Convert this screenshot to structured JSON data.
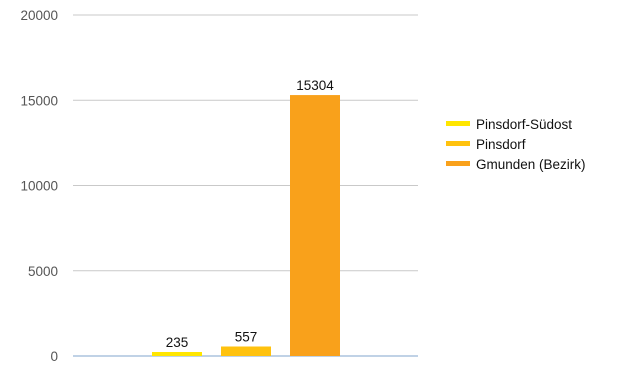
{
  "chart_data": {
    "type": "bar",
    "title": "",
    "xlabel": "",
    "ylabel": "",
    "ylim": [
      0,
      20000
    ],
    "yticks": [
      0,
      5000,
      10000,
      15000,
      20000
    ],
    "grid": true,
    "legend_position": "right",
    "series": [
      {
        "name": "Pinsdorf-Südost",
        "value": 235,
        "color": "#ffe600"
      },
      {
        "name": "Pinsdorf",
        "value": 557,
        "color": "#ffc20e"
      },
      {
        "name": "Gmunden (Bezirk)",
        "value": 15304,
        "color": "#f9a11b"
      }
    ]
  }
}
